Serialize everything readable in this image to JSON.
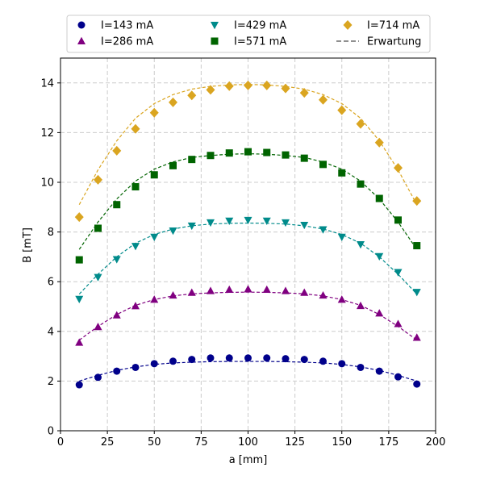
{
  "chart_data": {
    "type": "scatter",
    "xlabel": "a [mm]",
    "ylabel": "B [mT]",
    "xlim": [
      0,
      200
    ],
    "ylim": [
      0,
      15
    ],
    "xticks": [
      0,
      25,
      50,
      75,
      100,
      125,
      150,
      175,
      200
    ],
    "yticks": [
      0,
      2,
      4,
      6,
      8,
      10,
      12,
      14
    ],
    "grid": true,
    "legend_position": "top",
    "x": [
      10,
      20,
      30,
      40,
      50,
      60,
      70,
      80,
      90,
      100,
      110,
      120,
      130,
      140,
      150,
      160,
      170,
      180,
      190
    ],
    "series": [
      {
        "name": "I=143 mA",
        "marker": "circle",
        "color": "#00008b",
        "values": [
          1.85,
          2.15,
          2.4,
          2.55,
          2.7,
          2.8,
          2.87,
          2.93,
          2.93,
          2.93,
          2.93,
          2.9,
          2.87,
          2.8,
          2.7,
          2.55,
          2.4,
          2.17,
          1.88
        ],
        "expectation": [
          2.0,
          2.23,
          2.43,
          2.57,
          2.67,
          2.73,
          2.76,
          2.78,
          2.79,
          2.79,
          2.79,
          2.78,
          2.76,
          2.73,
          2.67,
          2.57,
          2.43,
          2.23,
          2.0
        ]
      },
      {
        "name": "I=286 mA",
        "marker": "triangle-up",
        "color": "#800080",
        "values": [
          3.55,
          4.18,
          4.65,
          5.02,
          5.28,
          5.45,
          5.56,
          5.63,
          5.68,
          5.7,
          5.68,
          5.63,
          5.56,
          5.45,
          5.28,
          5.03,
          4.73,
          4.3,
          3.75
        ],
        "expectation": [
          3.65,
          4.2,
          4.68,
          5.05,
          5.28,
          5.43,
          5.51,
          5.55,
          5.57,
          5.58,
          5.57,
          5.55,
          5.51,
          5.43,
          5.28,
          5.05,
          4.68,
          4.2,
          3.65
        ]
      },
      {
        "name": "I=429 mA",
        "marker": "triangle-down",
        "color": "#008b8b",
        "values": [
          5.3,
          6.18,
          6.9,
          7.43,
          7.8,
          8.05,
          8.25,
          8.38,
          8.45,
          8.48,
          8.45,
          8.38,
          8.28,
          8.1,
          7.8,
          7.5,
          7.02,
          6.38,
          5.58
        ],
        "expectation": [
          5.5,
          6.3,
          7.0,
          7.55,
          7.9,
          8.12,
          8.25,
          8.32,
          8.35,
          8.36,
          8.35,
          8.32,
          8.25,
          8.12,
          7.9,
          7.55,
          7.0,
          6.3,
          5.5
        ]
      },
      {
        "name": "I=571 mA",
        "marker": "square",
        "color": "#006400",
        "values": [
          6.88,
          8.15,
          9.1,
          9.82,
          10.3,
          10.67,
          10.92,
          11.08,
          11.18,
          11.23,
          11.2,
          11.1,
          10.97,
          10.72,
          10.38,
          9.93,
          9.35,
          8.48,
          7.45
        ],
        "expectation": [
          7.3,
          8.4,
          9.33,
          10.05,
          10.53,
          10.82,
          11.0,
          11.08,
          11.13,
          11.15,
          11.13,
          11.08,
          11.0,
          10.82,
          10.53,
          10.05,
          9.33,
          8.4,
          7.3
        ]
      },
      {
        "name": "I=714 mA",
        "marker": "diamond",
        "color": "#daa520",
        "values": [
          8.6,
          10.1,
          11.27,
          12.15,
          12.8,
          13.22,
          13.5,
          13.72,
          13.87,
          13.9,
          13.9,
          13.78,
          13.6,
          13.32,
          12.9,
          12.35,
          11.6,
          10.58,
          9.25
        ],
        "expectation": [
          9.1,
          10.5,
          11.67,
          12.58,
          13.17,
          13.53,
          13.75,
          13.86,
          13.92,
          13.94,
          13.92,
          13.86,
          13.75,
          13.53,
          13.17,
          12.58,
          11.67,
          10.5,
          9.1
        ]
      }
    ],
    "expectation_legend": {
      "name": "Erwartung",
      "color": "#808080",
      "style": "dashed"
    }
  }
}
